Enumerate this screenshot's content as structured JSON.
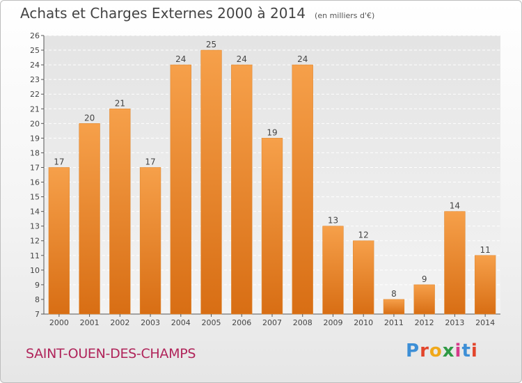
{
  "header": {
    "title": "Achats et Charges Externes 2000 à 2014",
    "subtitle": "(en milliers d'€)"
  },
  "footer": {
    "place": "SAINT-OUEN-DES-CHAMPS",
    "logo_text": "Proxiti",
    "logo_colors": [
      "#3d8fd6",
      "#e2452b",
      "#f0a81a",
      "#2f9a45",
      "#d63a8a",
      "#3d8fd6",
      "#e2452b"
    ]
  },
  "chart_data": {
    "type": "bar",
    "title": "Achats et Charges Externes 2000 à 2014",
    "subtitle": "(en milliers d'€)",
    "categories": [
      "2000",
      "2001",
      "2002",
      "2003",
      "2004",
      "2005",
      "2006",
      "2007",
      "2008",
      "2009",
      "2010",
      "2011",
      "2012",
      "2013",
      "2014"
    ],
    "values": [
      17,
      20,
      21,
      17,
      24,
      25,
      24,
      19,
      24,
      13,
      12,
      8,
      9,
      14,
      11
    ],
    "xlabel": "",
    "ylabel": "",
    "ylim": [
      7,
      26
    ],
    "yticks": [
      7,
      8,
      9,
      10,
      11,
      12,
      13,
      14,
      15,
      16,
      17,
      18,
      19,
      20,
      21,
      22,
      23,
      24,
      25,
      26
    ],
    "grid": true,
    "bar_color_top": "#f6a04a",
    "bar_color_bottom": "#d86e14",
    "legend": "none"
  }
}
